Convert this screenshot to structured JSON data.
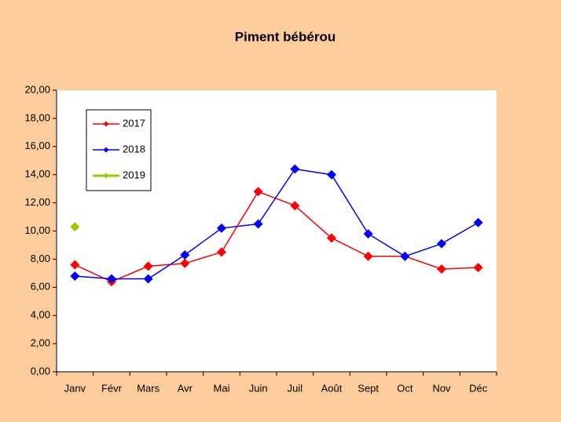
{
  "chart_data": {
    "type": "line",
    "title": "Piment bébérou",
    "categories": [
      "Janv",
      "Févr",
      "Mars",
      "Avr",
      "Mai",
      "Juin",
      "Juil",
      "Août",
      "Sept",
      "Oct",
      "Nov",
      "Déc"
    ],
    "series": [
      {
        "name": "2017",
        "color": "#ff0000",
        "values": [
          7.6,
          6.4,
          7.5,
          7.7,
          8.5,
          12.8,
          11.8,
          9.5,
          8.2,
          8.2,
          7.3,
          7.4
        ]
      },
      {
        "name": "2018",
        "color": "#0000ff",
        "values": [
          6.8,
          6.6,
          6.6,
          8.3,
          10.2,
          10.5,
          14.4,
          14.0,
          9.8,
          8.2,
          9.1,
          10.6
        ]
      },
      {
        "name": "2019",
        "color": "#99cc00",
        "values": [
          10.3,
          null,
          null,
          null,
          null,
          null,
          null,
          null,
          null,
          null,
          null,
          null
        ]
      }
    ],
    "ylim": [
      0,
      20
    ],
    "yticks": [
      {
        "value": 0,
        "label": "0,00"
      },
      {
        "value": 2,
        "label": "2,00"
      },
      {
        "value": 4,
        "label": "4,00"
      },
      {
        "value": 6,
        "label": "6,00"
      },
      {
        "value": 8,
        "label": "8,00"
      },
      {
        "value": 10,
        "label": "10,00"
      },
      {
        "value": 12,
        "label": "12,00"
      },
      {
        "value": 14,
        "label": "14,00"
      },
      {
        "value": 16,
        "label": "16,00"
      },
      {
        "value": 18,
        "label": "18,00"
      },
      {
        "value": 20,
        "label": "20,00"
      }
    ],
    "grid": false,
    "legend": "upper left"
  }
}
